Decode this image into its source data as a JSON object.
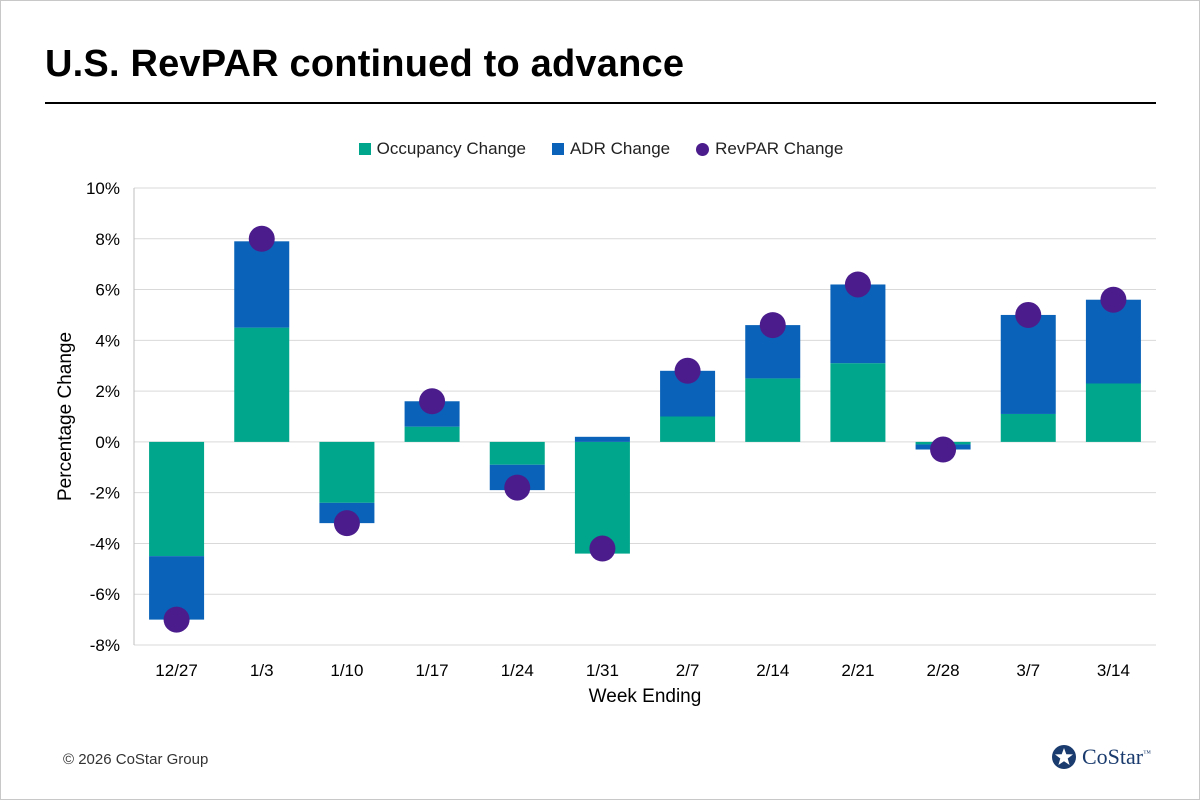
{
  "title": "U.S. RevPAR continued to advance",
  "legend": [
    {
      "label": "Occupancy Change",
      "color": "#00a68b",
      "shape": "square"
    },
    {
      "label": "ADR Change",
      "color": "#0a63b8",
      "shape": "square"
    },
    {
      "label": "RevPAR Change",
      "color": "#4b1d8c",
      "shape": "circle"
    }
  ],
  "footer": {
    "copyright": "© 2026 CoStar Group",
    "logo_text": "CoStar",
    "logo_tm": "™"
  },
  "chart_data": {
    "type": "bar",
    "stacked": true,
    "title": "U.S. RevPAR continued to advance",
    "xlabel": "Week Ending",
    "ylabel": "Percentage Change",
    "ylim": [
      -8,
      10
    ],
    "yticks": [
      10,
      8,
      6,
      4,
      2,
      0,
      -2,
      -4,
      -6,
      -8
    ],
    "ytick_labels": [
      "10%",
      "8%",
      "6%",
      "4%",
      "2%",
      "0%",
      "-2%",
      "-4%",
      "-6%",
      "-8%"
    ],
    "grid": true,
    "categories": [
      "12/27",
      "1/3",
      "1/10",
      "1/17",
      "1/24",
      "1/31",
      "2/7",
      "2/14",
      "2/21",
      "2/28",
      "3/7",
      "3/14"
    ],
    "series": [
      {
        "name": "Occupancy Change",
        "kind": "bar",
        "color": "#00a68b",
        "values": [
          -4.5,
          4.5,
          -2.4,
          0.6,
          -0.9,
          -4.4,
          1.0,
          2.5,
          3.1,
          -0.1,
          1.1,
          2.3
        ]
      },
      {
        "name": "ADR Change",
        "kind": "bar",
        "color": "#0a63b8",
        "values": [
          -2.5,
          3.4,
          -0.8,
          1.0,
          -1.0,
          0.2,
          1.8,
          2.1,
          3.1,
          -0.2,
          3.9,
          3.3
        ]
      },
      {
        "name": "RevPAR Change",
        "kind": "dot",
        "color": "#4b1d8c",
        "values": [
          -7.0,
          8.0,
          -3.2,
          1.6,
          -1.8,
          -4.2,
          2.8,
          4.6,
          6.2,
          -0.3,
          5.0,
          5.6
        ]
      }
    ]
  }
}
